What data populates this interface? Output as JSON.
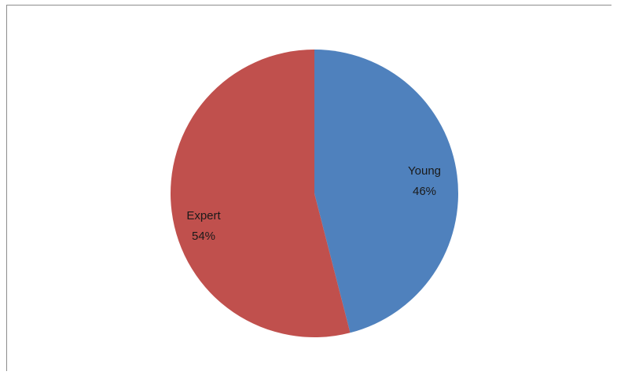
{
  "chart_data": {
    "type": "pie",
    "title": "",
    "slices": [
      {
        "label": "Young",
        "value": 46,
        "percent_label": "46%",
        "color": "#4f81bd"
      },
      {
        "label": "Expert",
        "value": 54,
        "percent_label": "54%",
        "color": "#c0504d"
      }
    ],
    "start_angle_deg": 0,
    "direction": "clockwise",
    "legend": "none"
  }
}
